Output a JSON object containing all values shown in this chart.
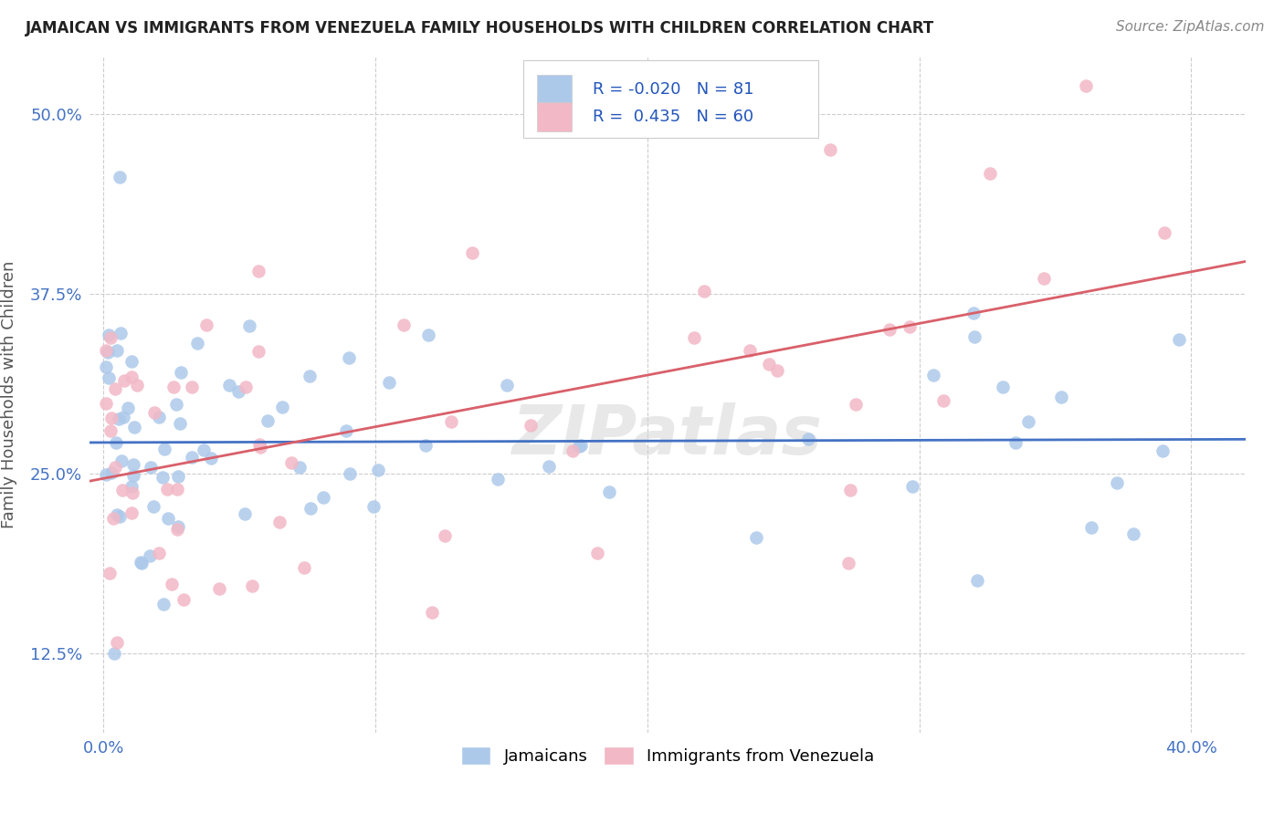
{
  "title": "JAMAICAN VS IMMIGRANTS FROM VENEZUELA FAMILY HOUSEHOLDS WITH CHILDREN CORRELATION CHART",
  "source": "Source: ZipAtlas.com",
  "ylabel": "Family Households with Children",
  "R_blue": -0.02,
  "N_blue": 81,
  "R_pink": 0.435,
  "N_pink": 60,
  "blue_color": "#adc9ea",
  "pink_color": "#f2b8c6",
  "blue_line_color": "#4472c4",
  "pink_line_color": "#d9606a",
  "watermark": "ZIPatlas",
  "background_color": "#ffffff",
  "grid_color": "#cccccc",
  "ytick_vals": [
    12.5,
    25.0,
    37.5,
    50.0
  ],
  "xtick_vals": [
    0.0,
    10.0,
    20.0,
    30.0,
    40.0
  ],
  "xlim": [
    -0.5,
    42.0
  ],
  "ylim": [
    7.0,
    54.0
  ],
  "legend_blue_label": "Jamaicans",
  "legend_pink_label": "Immigrants from Venezuela",
  "title_color": "#222222",
  "source_color": "#888888",
  "axis_label_color": "#555555",
  "tick_color": "#4472c4"
}
